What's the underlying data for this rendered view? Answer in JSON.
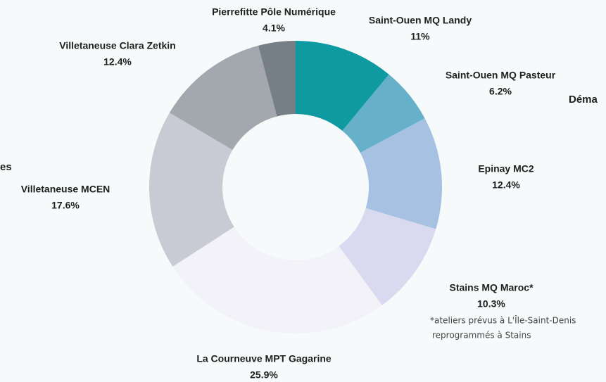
{
  "chart_data": {
    "type": "donut",
    "categories": [
      "Saint-Ouen MQ Landy",
      "Saint-Ouen MQ Pasteur",
      "Epinay MC2",
      "Stains MQ Maroc*",
      "La Courneuve MPT Gagarine",
      "Villetaneuse MCEN",
      "Villetaneuse Clara Zetkin",
      "Pierrefitte Pôle Numérique"
    ],
    "values": [
      11,
      6.2,
      12.4,
      10.3,
      25.9,
      17.6,
      12.4,
      4.1
    ],
    "value_labels": [
      "11%",
      "6.2%",
      "12.4%",
      "10.3%",
      "25.9%",
      "17.6%",
      "12.4%",
      "4.1%"
    ],
    "colors": [
      "#0e9aa0",
      "#66b0c9",
      "#a6c1e1",
      "#d9d9ef",
      "#f3f2f8",
      "#c8cbd3",
      "#a3a8ae",
      "#767e86"
    ],
    "note": [
      "*ateliers prévus à L'Île-Saint-Denis",
      "reprogrammés à Stains"
    ],
    "annotations": [
      "es",
      "Déma"
    ]
  }
}
